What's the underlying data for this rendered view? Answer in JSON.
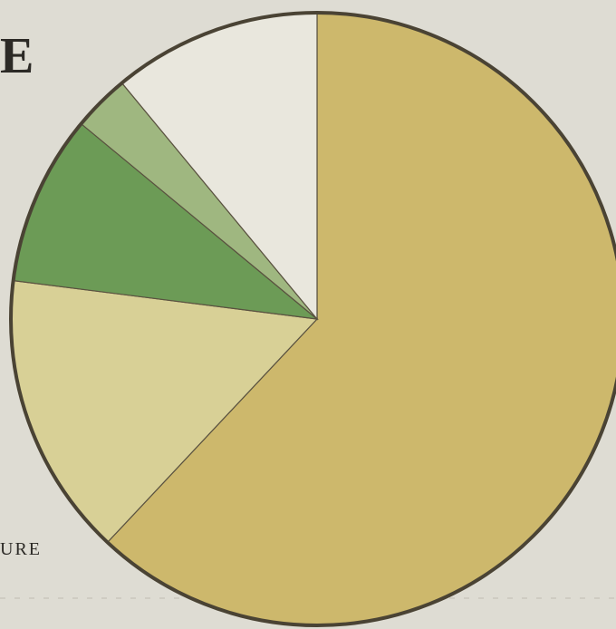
{
  "chart_data": {
    "type": "pie",
    "annotations": [
      "E",
      "URE"
    ],
    "categories": [
      null,
      null,
      null,
      null,
      null
    ],
    "values": [
      62,
      15,
      9,
      3,
      11
    ],
    "colors": [
      "#cdb86c",
      "#d8d096",
      "#6c9b56",
      "#9fb780",
      "#e9e7dd"
    ],
    "start_angle": 0,
    "clockwise": true
  }
}
